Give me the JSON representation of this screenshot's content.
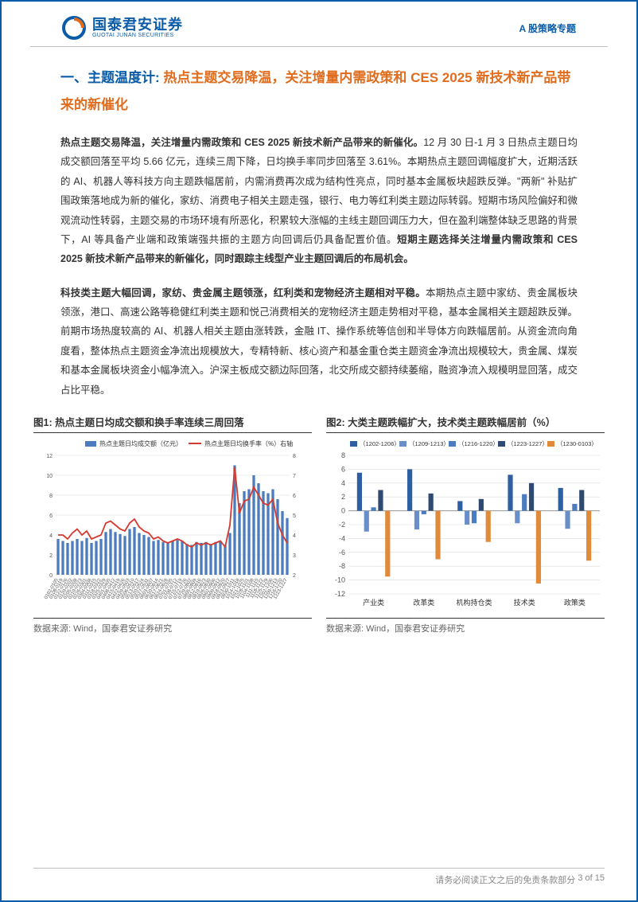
{
  "header": {
    "brand_cn": "国泰君安证券",
    "brand_en": "GUOTAI JUNAN SECURITIES",
    "doc_tag": "A 股策略专题"
  },
  "section_title_l1": "一、主题温度计:  ",
  "section_title_hl": "热点主题交易降温，关注增量内需政策和 CES 2025 新技术新产品带来的新催化",
  "para1_bold_lead": "热点主题交易降温，关注增量内需政策和 CES 2025 新技术新产品带来的新催化。",
  "para1_body": "12 月 30 日-1 月 3 日热点主题日均成交额回落至平均 5.66 亿元，连续三周下降，日均换手率同步回落至 3.61%。本期热点主题回调幅度扩大，近期活跃的 AI、机器人等科技方向主题跌幅居前，内需消费再次成为结构性亮点，同时基本金属板块超跌反弹。\"两新\" 补贴扩围政策落地成为新的催化，家纺、消费电子相关主题走强，银行、电力等红利类主题边际转弱。短期市场风险偏好和微观流动性转弱，主题交易的市场环境有所恶化，积累较大涨幅的主线主题回调压力大，但在盈利端整体缺乏思路的背景下，AI 等具备产业端和政策端强共振的主题方向回调后仍具备配置价值。",
  "para1_bold_tail": "短期主题选择关注增量内需政策和 CES 2025 新技术新产品带来的新催化，同时跟踪主线型产业主题回调后的布局机会。",
  "para2_bold_lead": "科技类主题大幅回调，家纺、贵金属主题领涨，红利类和宠物经济主题相对平稳。",
  "para2_body": "本期热点主题中家纺、贵金属板块领涨，港口、高速公路等稳健红利类主题和悦己消费相关的宠物经济主题走势相对平稳，基本金属相关主题超跌反弹。前期市场热度较高的 AI、机器人相关主题由涨转跌，金融 IT、操作系统等信创和半导体方向跌幅居前。从资金流向角度看，整体热点主题资金净流出规模放大，专精特新、核心资产和基金重仓类主题资金净流出规模较大，贵金属、煤炭和基本金属板块资金小幅净流入。沪深主板成交额边际回落，北交所成交额持续萎缩，融资净流入规模明显回落，成交占比平稳。",
  "chart1": {
    "title": "图1:  热点主题日均成交额和换手率连续三周回落",
    "type": "combo-bar-line",
    "legend_bar": "热点主题日均成交额（亿元）",
    "legend_line": "热点主题日均换手率（%）右轴",
    "y_left_min": 0,
    "y_left_max": 12,
    "y_left_step": 2,
    "y_right_min": 2,
    "y_right_max": 8,
    "y_right_step": 1,
    "bar_color": "#4a7cbf",
    "line_color": "#d43a2f",
    "grid_color": "#d9d9d9",
    "background_color": "#ffffff",
    "axis_fontsize": 7,
    "legend_fontsize": 8,
    "bar_width": 0.55,
    "line_width": 1.8,
    "x_labels": [
      "0102-0105",
      "0108-0119",
      "0122-0126",
      "0129-0202",
      "0205-0208",
      "0219-0223",
      "0226-0301",
      "0304-0308",
      "0311-0315",
      "0318-0322",
      "0325-0329",
      "0401-0405",
      "0408-0412",
      "0415-0419",
      "0422-0426",
      "0429-0503",
      "0506-0510",
      "0513-0517",
      "0520-0524",
      "0527-0531",
      "0603-0607",
      "0610-0614",
      "0617-0621",
      "0624-0628",
      "0701-0705",
      "0708-0712",
      "0715-0719",
      "0722-0726",
      "0729-0802",
      "0805-0809",
      "0812-0816",
      "0819-0823",
      "0826-0830",
      "0902-0906",
      "0909-0912",
      "0918-0920",
      "0923-0927",
      "0930-1011",
      "1014-1018",
      "1021-1025",
      "1028-1101",
      "1104-1108",
      "1111-1115",
      "1118-1122",
      "1125-1129",
      "1202-1206",
      "1209-1213",
      "1216-1220",
      "1223-1227"
    ],
    "bars": [
      3.6,
      3.4,
      3.2,
      3.4,
      3.6,
      3.4,
      3.7,
      3.2,
      3.4,
      3.6,
      4.3,
      4.6,
      4.3,
      4.1,
      3.9,
      4.6,
      4.8,
      4.2,
      4.0,
      3.8,
      3.4,
      3.5,
      3.3,
      3.2,
      3.4,
      3.5,
      3.4,
      3.1,
      3.0,
      3.3,
      3.2,
      3.3,
      3.1,
      3.3,
      3.4,
      3.0,
      4.2,
      11.0,
      7.2,
      8.4,
      8.6,
      10.0,
      9.2,
      8.4,
      8.2,
      8.6,
      7.6,
      6.4,
      5.7
    ],
    "line": [
      4.0,
      4.0,
      3.8,
      4.1,
      4.3,
      4.0,
      4.2,
      3.8,
      3.9,
      4.0,
      4.6,
      4.7,
      4.5,
      4.3,
      4.2,
      4.6,
      4.8,
      4.4,
      4.2,
      4.1,
      3.8,
      3.9,
      3.7,
      3.6,
      3.7,
      3.8,
      3.7,
      3.5,
      3.4,
      3.6,
      3.5,
      3.6,
      3.5,
      3.6,
      3.7,
      3.4,
      4.5,
      7.4,
      5.1,
      5.7,
      5.8,
      6.4,
      6.0,
      5.6,
      5.5,
      5.8,
      4.6,
      4.0,
      3.6
    ],
    "source": "数据来源:  Wind，国泰君安证券研究"
  },
  "chart2": {
    "title": "图2:  大类主题跌幅扩大，技术类主题跌幅居前（%）",
    "type": "grouped-bar",
    "legend": [
      "（1202-1206）",
      "（1209-1213）",
      "（1216-1220）",
      "（1223-1227）",
      "（1230-0103）"
    ],
    "series_colors": [
      "#2f5fa3",
      "#6a8ec8",
      "#4a7cbf",
      "#2e4a72",
      "#e08a3a"
    ],
    "categories": [
      "产业类",
      "改革类",
      "机构持仓类",
      "技术类",
      "政策类"
    ],
    "y_min": -12,
    "y_max": 8,
    "y_step": 2,
    "grid_color": "#d9d9d9",
    "background_color": "#ffffff",
    "axis_fontsize": 9,
    "legend_fontsize": 7.5,
    "bar_width": 0.14,
    "data": {
      "产业类": [
        5.5,
        -3.0,
        0.5,
        3.0,
        -9.5
      ],
      "改革类": [
        6.0,
        -2.7,
        -0.5,
        2.5,
        -7.0
      ],
      "机构持仓类": [
        1.4,
        -2.0,
        -1.8,
        1.7,
        -4.5
      ],
      "技术类": [
        5.2,
        -1.8,
        2.4,
        4.0,
        -10.5
      ],
      "政策类": [
        3.3,
        -2.6,
        1.0,
        3.0,
        -7.2
      ]
    },
    "source": "数据来源:  Wind，国泰君安证券研究"
  },
  "footer": {
    "text": "请务必阅读正文之后的免责条款部分",
    "page_current": 3,
    "page_total": 15
  },
  "logo": {
    "outer_color": "#0b5ca8",
    "inner_color": "#e06c1e"
  }
}
